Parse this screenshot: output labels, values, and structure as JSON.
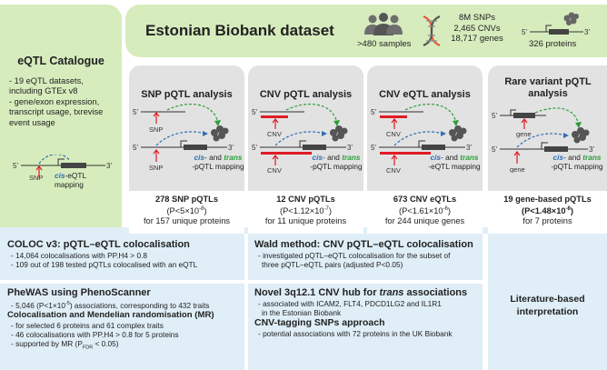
{
  "colors": {
    "green": "#d7ecbd",
    "gray": "#e2e2e2",
    "blue": "#dfeef7",
    "red": "#e01b24",
    "cis_blue": "#2f6db5",
    "trans_green": "#2e9d3a",
    "dark": "#333333"
  },
  "biobank": {
    "title": "Estonian Biobank dataset",
    "samples": ">480 samples",
    "snps": "8M SNPs",
    "cnvs": "2,465 CNVs",
    "genes": "18,717 genes",
    "proteins": "326 proteins"
  },
  "catalogue": {
    "title": "eQTL Catalogue",
    "items": [
      "- 19 eQTL datasets, including GTEx v8",
      "- gene/exon expression, transcript usage, txrevise event usage"
    ],
    "cis": "cis",
    "mapping": "-eQTL mapping",
    "snp": "SNP"
  },
  "diagram": {
    "p5": "5'",
    "p3": "3'",
    "snp": "SNP",
    "cnv": "CNV",
    "gene": "gene",
    "cis": "cis",
    "and": "- and ",
    "trans": "trans",
    "suffix_pqtl": "-pQTL mapping",
    "suffix_eqtl": "-eQTL mapping"
  },
  "analyses": [
    {
      "title": "SNP pQTL analysis",
      "result_title": "278 SNP pQTLs",
      "result_p": "(P<5×10",
      "result_p_exp": "-8",
      "result_p_end": ")",
      "result_desc": "for 157 unique proteins"
    },
    {
      "title": "CNV pQTL analysis",
      "result_title": "12 CNV pQTLs",
      "result_p": "(P<1.12×10",
      "result_p_exp": "-7",
      "result_p_end": ")",
      "result_desc": "for 11 unique proteins"
    },
    {
      "title": "CNV eQTL analysis",
      "result_title": "673 CNV eQTLs",
      "result_p": "(P<1.61×10",
      "result_p_exp": "-6",
      "result_p_end": ")",
      "result_desc": "for 244 unique genes"
    },
    {
      "title": "Rare variant pQTL analysis",
      "result_title": "19 gene-based pQTLs (P<1.48×10",
      "result_p_exp": "-8",
      "result_p_end": ")",
      "result_desc": "for 7 proteins"
    }
  ],
  "coloc": {
    "title": "COLOC v3: pQTL–eQTL colocalisation",
    "items": [
      "- 14,064 colocalisations with PP.H4 > 0.8",
      "- 109 out of 198 tested pQTLs colocalised with an eQTL"
    ]
  },
  "wald": {
    "title": "Wald method: CNV pQTL–eQTL colocalisation",
    "items": [
      "- investigated pQTL–eQTL colocalisation for the subset of",
      "three pQTL–eQTL pairs (adjusted P<0.05)"
    ]
  },
  "literature": {
    "line1": "Literature-based",
    "line2": "interpretation"
  },
  "phewas": {
    "title": "PheWAS using PhenoScanner",
    "item1_a": "- 5,046 (P<1×10",
    "item1_exp": "-5",
    "item1_b": ") associations, corresponding to 432 traits",
    "title2": "Colocalisation and Mendelian randomisation (MR)",
    "items": [
      "- for selected 6 proteins and 61 complex traits",
      "- 46 colocalisations with PP.H4 > 0.8 for 5 proteins"
    ],
    "mr_a": "- supported by MR (P",
    "mr_sub": "FDR",
    "mr_b": " < 0.05)"
  },
  "novel": {
    "title_a": "Novel 3q12.1 CNV hub for ",
    "title_italic": "trans",
    "title_b": " associations",
    "items": [
      "- associated with ICAM2, FLT4, PDCD1LG2 and IL1R1",
      "in the Estonian Biobank"
    ],
    "title2": "CNV-tagging SNPs approach",
    "items2": [
      "- potential associations with 72 proteins in the UK Biobank"
    ]
  }
}
